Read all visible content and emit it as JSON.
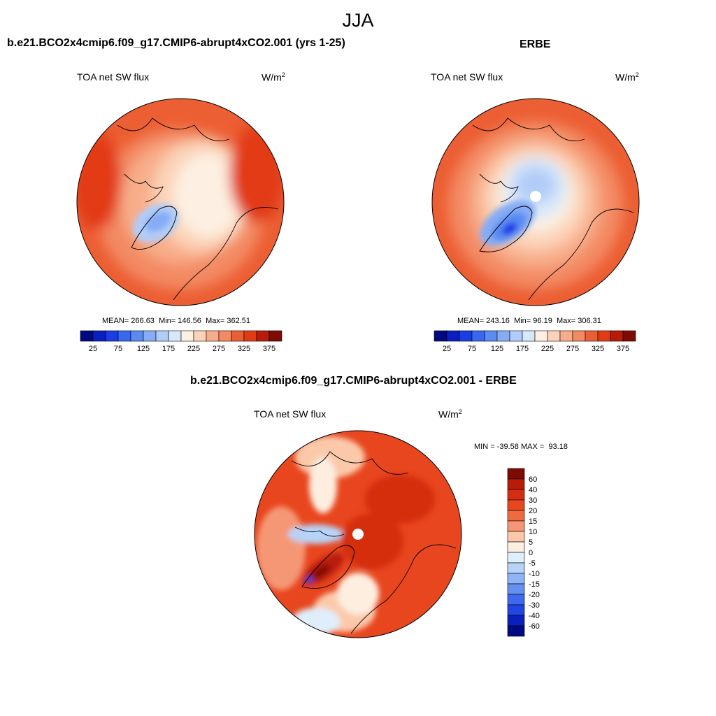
{
  "figure": {
    "title": "JJA"
  },
  "panels": [
    {
      "title": "b.e21.BCO2x4cmip6.f09_g17.CMIP6-abrupt4xCO2.001 (yrs 1-25)",
      "variable": "TOA net SW flux",
      "units": "W/m",
      "units_exp": "2",
      "stats": {
        "mean": "266.63",
        "min": "146.56",
        "max": "362.51"
      }
    },
    {
      "title": "ERBE",
      "variable": "TOA net SW flux",
      "units": "W/m",
      "units_exp": "2",
      "stats": {
        "mean": "243.16",
        "min": "96.19",
        "max": "306.31"
      }
    },
    {
      "title": "b.e21.BCO2x4cmip6.f09_g17.CMIP6-abrupt4xCO2.001 - ERBE",
      "variable": "TOA net SW flux",
      "units": "W/m",
      "units_exp": "2",
      "stats": {
        "min": "-39.58",
        "max": "93.18"
      }
    }
  ],
  "stat_labels": {
    "mean": "MEAN=",
    "min": "Min=",
    "max": "Max=",
    "MIN": "MIN =",
    "MAX": "MAX ="
  },
  "chart_data": [
    {
      "type": "heatmap",
      "projection": "north-polar-stereographic",
      "title": "b.e21.BCO2x4cmip6.f09_g17.CMIP6-abrupt4xCO2.001 (yrs 1-25)",
      "variable": "TOA net SW flux",
      "units": "W/m2",
      "mean": 266.63,
      "min": 146.56,
      "max": 362.51,
      "colorbar": {
        "orientation": "horizontal",
        "levels": [
          25,
          50,
          75,
          100,
          125,
          150,
          175,
          200,
          225,
          250,
          275,
          300,
          325,
          350,
          375
        ],
        "tick_labels": [
          "25",
          "75",
          "125",
          "175",
          "225",
          "275",
          "325",
          "375"
        ],
        "colors": [
          "#000a80",
          "#0a1fc2",
          "#1a3de8",
          "#3868f0",
          "#5a8af2",
          "#86acf5",
          "#b0ccf8",
          "#d8e8fb",
          "#fdf0e2",
          "#fbd3b8",
          "#f8ad8a",
          "#f38a63",
          "#ec5e33",
          "#e23a15",
          "#b81c09",
          "#7e0a02"
        ]
      }
    },
    {
      "type": "heatmap",
      "projection": "north-polar-stereographic",
      "title": "ERBE",
      "variable": "TOA net SW flux",
      "units": "W/m2",
      "mean": 243.16,
      "min": 96.19,
      "max": 306.31,
      "colorbar": {
        "orientation": "horizontal",
        "levels": [
          25,
          50,
          75,
          100,
          125,
          150,
          175,
          200,
          225,
          250,
          275,
          300,
          325,
          350,
          375
        ],
        "tick_labels": [
          "25",
          "75",
          "125",
          "175",
          "225",
          "275",
          "325",
          "375"
        ],
        "colors": [
          "#000a80",
          "#0a1fc2",
          "#1a3de8",
          "#3868f0",
          "#5a8af2",
          "#86acf5",
          "#b0ccf8",
          "#d8e8fb",
          "#fdf0e2",
          "#fbd3b8",
          "#f8ad8a",
          "#f38a63",
          "#ec5e33",
          "#e23a15",
          "#b81c09",
          "#7e0a02"
        ]
      }
    },
    {
      "type": "heatmap",
      "projection": "north-polar-stereographic",
      "title": "b.e21.BCO2x4cmip6.f09_g17.CMIP6-abrupt4xCO2.001 - ERBE",
      "variable": "TOA net SW flux",
      "units": "W/m2",
      "min": -39.58,
      "max": 93.18,
      "colorbar": {
        "orientation": "vertical",
        "levels": [
          "60",
          "40",
          "30",
          "20",
          "15",
          "10",
          "5",
          "0",
          "-5",
          "-10",
          "-15",
          "-20",
          "-30",
          "-40",
          "-60"
        ],
        "colors": [
          "#7e0a02",
          "#b81c09",
          "#d42e10",
          "#e8461e",
          "#f06a3f",
          "#f59775",
          "#fbc9aa",
          "#fdeee0",
          "#dfeefb",
          "#b7d3f8",
          "#8db4f4",
          "#6490f1",
          "#3d6aee",
          "#1f45e2",
          "#0a20bd",
          "#000a80"
        ]
      }
    }
  ]
}
